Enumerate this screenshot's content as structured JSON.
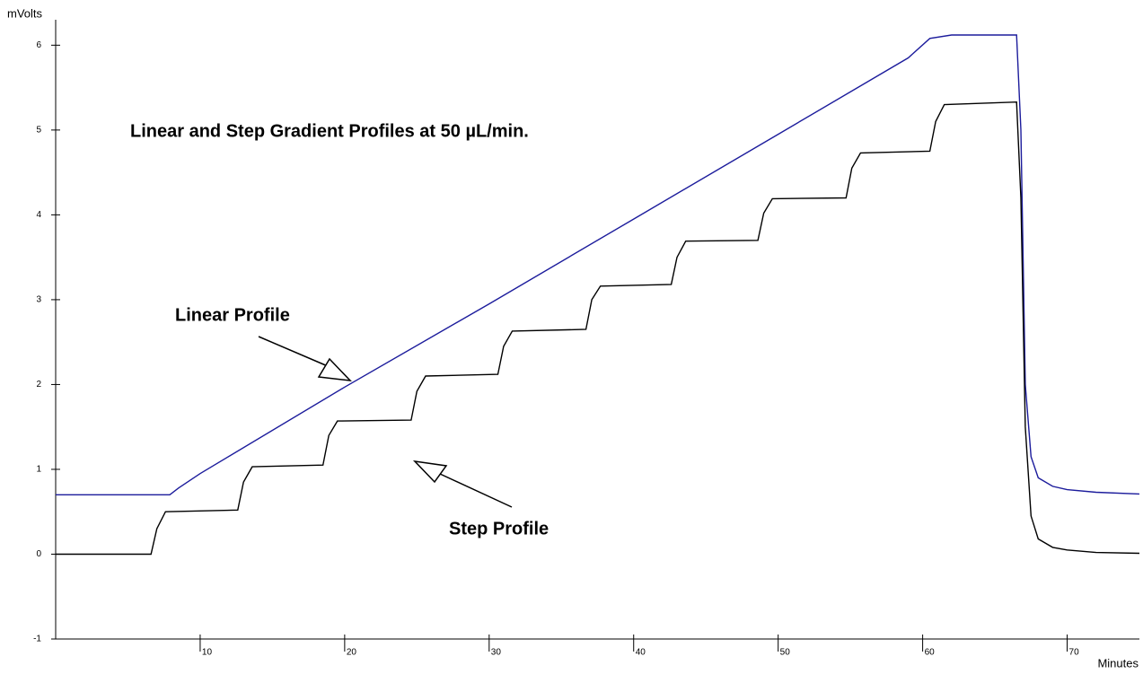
{
  "chart_data": {
    "type": "line",
    "title": "Linear and Step Gradient Profiles at 50 µL/min.",
    "y_label": "mVolts",
    "x_label": "Minutes",
    "annotations": [
      "Linear Profile",
      "Step Profile"
    ],
    "xlim": [
      0,
      75
    ],
    "xticks": [
      10,
      20,
      30,
      40,
      50,
      60,
      70
    ],
    "ylim": [
      -1,
      6.3
    ],
    "yticks": [
      -1,
      0,
      1,
      2,
      3,
      4,
      5,
      6
    ],
    "series": [
      {
        "name": "Linear Profile",
        "color": "#1c1c9c",
        "x": [
          0,
          7.9,
          8.5,
          10,
          20,
          30,
          40,
          50,
          59,
          60.5,
          62,
          66.5,
          66.8,
          67.1,
          67.5,
          68,
          69,
          70,
          72,
          75
        ],
        "values": [
          0.7,
          0.7,
          0.78,
          0.95,
          1.97,
          2.95,
          3.95,
          4.95,
          5.85,
          6.08,
          6.12,
          6.12,
          5.0,
          2.0,
          1.15,
          0.9,
          0.8,
          0.76,
          0.73,
          0.71
        ]
      },
      {
        "name": "Step Profile",
        "color": "#000000",
        "x": [
          0,
          6.6,
          7.0,
          7.6,
          12.6,
          13.0,
          13.6,
          18.5,
          18.9,
          19.5,
          24.6,
          25.0,
          25.6,
          30.6,
          31.0,
          31.6,
          36.7,
          37.1,
          37.7,
          42.6,
          43.0,
          43.6,
          48.6,
          49.0,
          49.6,
          54.7,
          55.1,
          55.7,
          60.5,
          60.9,
          61.5,
          66.5,
          66.8,
          67.1,
          67.5,
          68,
          69,
          70,
          72,
          75
        ],
        "values": [
          0,
          0,
          0.3,
          0.5,
          0.52,
          0.85,
          1.03,
          1.05,
          1.4,
          1.57,
          1.58,
          1.92,
          2.1,
          2.12,
          2.45,
          2.63,
          2.65,
          3.0,
          3.16,
          3.18,
          3.5,
          3.69,
          3.7,
          4.02,
          4.19,
          4.2,
          4.55,
          4.73,
          4.75,
          5.1,
          5.3,
          5.33,
          4.2,
          1.5,
          0.45,
          0.18,
          0.08,
          0.05,
          0.02,
          0.01
        ]
      }
    ]
  }
}
